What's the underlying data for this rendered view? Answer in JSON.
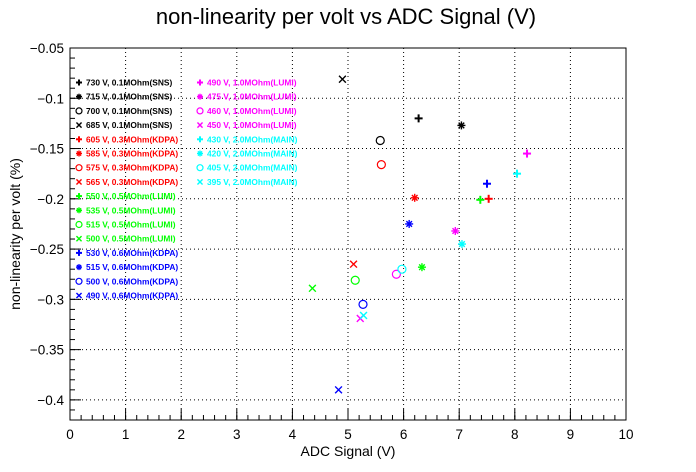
{
  "chart_data": {
    "type": "scatter",
    "title": "non-linearity per volt vs ADC Signal (V)",
    "xlabel": "ADC Signal (V)",
    "ylabel": "non-linearity per volt (%)",
    "xlim": [
      0,
      10
    ],
    "ylim": [
      -0.42,
      -0.05
    ],
    "grid": true,
    "legend_position": "top-left",
    "x_ticks": [
      "0",
      "1",
      "2",
      "3",
      "4",
      "5",
      "6",
      "7",
      "8",
      "9",
      "10"
    ],
    "y_ticks": [
      "−0.4",
      "−0.35",
      "−0.3",
      "−0.25",
      "−0.2",
      "−0.15",
      "−0.1",
      "−0.05"
    ],
    "y_tick_values": [
      -0.4,
      -0.35,
      -0.3,
      -0.25,
      -0.2,
      -0.15,
      -0.1,
      -0.05
    ],
    "colors": {
      "black": "#000000",
      "red": "#ff0000",
      "green": "#00ff00",
      "blue": "#0000ff",
      "magenta": "#ff00ff",
      "cyan": "#00ffff"
    },
    "series": [
      {
        "name": "730 V, 0.1MOhm(SNS)",
        "marker": "plus",
        "color": "#000000",
        "points": [
          [
            6.27,
            -0.12
          ]
        ]
      },
      {
        "name": "715 V, 0.1MOhm(SNS)",
        "marker": "star",
        "color": "#000000",
        "points": [
          [
            7.04,
            -0.127
          ]
        ]
      },
      {
        "name": "700 V, 0.1MOhm(SNS)",
        "marker": "circle",
        "color": "#000000",
        "points": [
          [
            5.58,
            -0.142
          ]
        ]
      },
      {
        "name": "685 V, 0.1MOhm(SNS)",
        "marker": "cross",
        "color": "#000000",
        "points": [
          [
            4.9,
            -0.081
          ]
        ]
      },
      {
        "name": "605 V, 0.3MOhm(KDPA)",
        "marker": "plus",
        "color": "#ff0000",
        "points": [
          [
            7.53,
            -0.2
          ]
        ]
      },
      {
        "name": "585 V, 0.3MOhm(KDPA)",
        "marker": "star",
        "color": "#ff0000",
        "points": [
          [
            6.2,
            -0.199
          ]
        ]
      },
      {
        "name": "575 V, 0.3MOhm(KDPA)",
        "marker": "circle",
        "color": "#ff0000",
        "points": [
          [
            5.6,
            -0.166
          ]
        ]
      },
      {
        "name": "565 V, 0.3MOhm(KDPA)",
        "marker": "cross",
        "color": "#ff0000",
        "points": [
          [
            5.1,
            -0.265
          ]
        ]
      },
      {
        "name": "550 V, 0.5MOhm(LUMI)",
        "marker": "plus",
        "color": "#00ff00",
        "points": [
          [
            7.38,
            -0.201
          ]
        ]
      },
      {
        "name": "535 V, 0.5MOhm(LUMI)",
        "marker": "star",
        "color": "#00ff00",
        "points": [
          [
            6.33,
            -0.268
          ]
        ]
      },
      {
        "name": "515 V, 0.5MOhm(LUMI)",
        "marker": "circle",
        "color": "#00ff00",
        "points": [
          [
            5.13,
            -0.281
          ]
        ]
      },
      {
        "name": "500 V, 0.5MOhm(LUMI)",
        "marker": "cross",
        "color": "#00ff00",
        "points": [
          [
            4.36,
            -0.289
          ]
        ]
      },
      {
        "name": "530 V, 0.6MOhm(KDPA)",
        "marker": "plus",
        "color": "#0000ff",
        "points": [
          [
            7.5,
            -0.185
          ]
        ]
      },
      {
        "name": "515 V, 0.6MOhm(KDPA)",
        "marker": "star",
        "color": "#0000ff",
        "points": [
          [
            6.1,
            -0.225
          ]
        ]
      },
      {
        "name": "500 V, 0.6MOhm(KDPA)",
        "marker": "circle",
        "color": "#0000ff",
        "points": [
          [
            5.27,
            -0.305
          ]
        ]
      },
      {
        "name": "490 V, 0.6MOhm(KDPA)",
        "marker": "cross",
        "color": "#0000ff",
        "points": [
          [
            4.83,
            -0.39
          ]
        ]
      },
      {
        "name": "490 V, 1.0MOhm(LUMI)",
        "marker": "plus",
        "color": "#ff00ff",
        "points": [
          [
            8.22,
            -0.155
          ]
        ]
      },
      {
        "name": "475 V, 1.0MOhm(LUMI)",
        "marker": "star",
        "color": "#ff00ff",
        "points": [
          [
            6.93,
            -0.232
          ]
        ]
      },
      {
        "name": "460 V, 1.0MOhm(LUMI)",
        "marker": "circle",
        "color": "#ff00ff",
        "points": [
          [
            5.87,
            -0.275
          ]
        ]
      },
      {
        "name": "450 V, 1.0MOhm(LUMI)",
        "marker": "cross",
        "color": "#ff00ff",
        "points": [
          [
            5.22,
            -0.319
          ]
        ]
      },
      {
        "name": "430 V, 2.0MOhm(MAIN)",
        "marker": "plus",
        "color": "#00ffff",
        "points": [
          [
            8.04,
            -0.175
          ]
        ]
      },
      {
        "name": "420 V, 2.0MOhm(MAIN)",
        "marker": "star",
        "color": "#00ffff",
        "points": [
          [
            7.05,
            -0.245
          ]
        ]
      },
      {
        "name": "405 V, 2.0MOhm(MAIN)",
        "marker": "circle",
        "color": "#00ffff",
        "points": [
          [
            5.97,
            -0.27
          ]
        ]
      },
      {
        "name": "395 V, 2.0MOhm(MAIN)",
        "marker": "cross",
        "color": "#00ffff",
        "points": [
          [
            5.28,
            -0.316
          ]
        ]
      }
    ]
  }
}
